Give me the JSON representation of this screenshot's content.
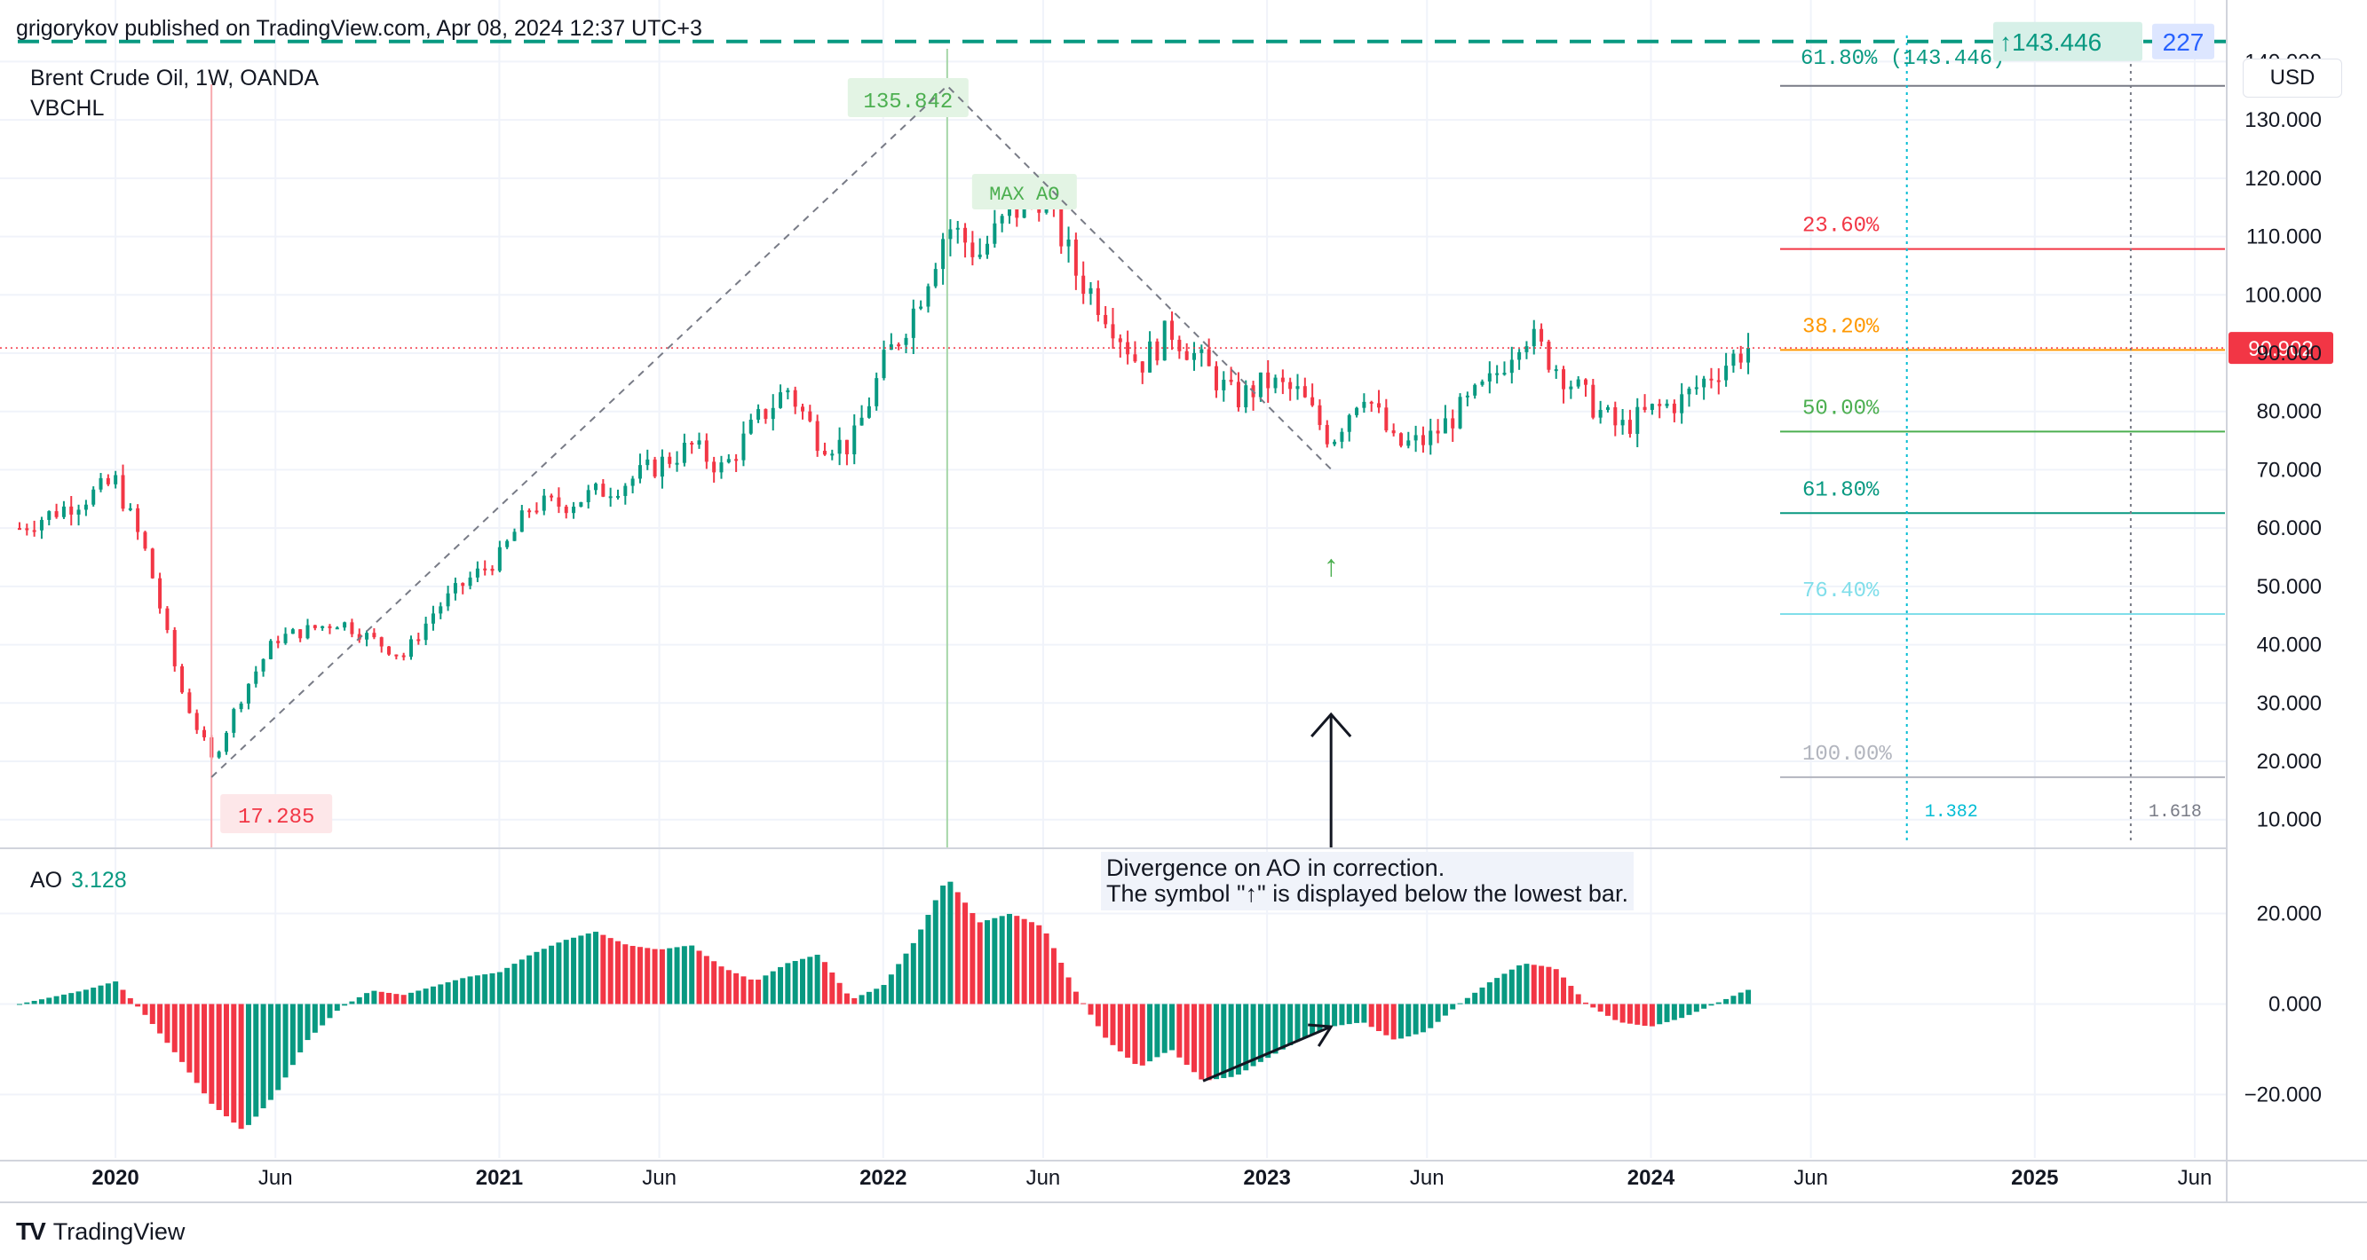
{
  "header": {
    "published": "grigorykov published on TradingView.com, Apr 08, 2024 12:37 UTC+3",
    "symbol": "Brent Crude Oil, 1W, OANDA",
    "indicator": "VBCHL",
    "currency": "USD"
  },
  "ao_panel": {
    "label": "AO",
    "value": "3.128"
  },
  "annotation": {
    "line1": "Divergence on AO in correction.",
    "line2": "The symbol \"↑\" is displayed below the lowest bar."
  },
  "footer": {
    "brand": "TradingView",
    "logo_icon": "tradingview-logo-icon"
  },
  "colors": {
    "up": "#089981",
    "down": "#f23645",
    "grid": "#f0f3fa"
  },
  "chart_data": [
    {
      "type": "candlestick",
      "title": "Brent Crude Oil, 1W, OANDA",
      "x_ticks": [
        "2020",
        "Jun",
        "2021",
        "Jun",
        "2022",
        "Jun",
        "2023",
        "Jun",
        "2024",
        "Jun",
        "2025",
        "Jun"
      ],
      "y_ticks": [
        "10.000",
        "20.000",
        "30.000",
        "40.000",
        "50.000",
        "60.000",
        "70.000",
        "80.000",
        "90.000",
        "100.000",
        "110.000",
        "120.000",
        "130.000",
        "140.000"
      ],
      "ylim": [
        6,
        146
      ],
      "x_start": "2019-10",
      "x_end": "2025-07",
      "last_bar": "2024-04",
      "close_series": [
        [
          "2019-10",
          60
        ],
        [
          "2019-12",
          65
        ],
        [
          "2020-01",
          68
        ],
        [
          "2020-02",
          55
        ],
        [
          "2020-03",
          33
        ],
        [
          "2020-04",
          20
        ],
        [
          "2020-05",
          32
        ],
        [
          "2020-06",
          41
        ],
        [
          "2020-08",
          44
        ],
        [
          "2020-09",
          41
        ],
        [
          "2020-10",
          38
        ],
        [
          "2020-11",
          46
        ],
        [
          "2020-12",
          51
        ],
        [
          "2021-01",
          55
        ],
        [
          "2021-02",
          64
        ],
        [
          "2021-03",
          64
        ],
        [
          "2021-05",
          68
        ],
        [
          "2021-07",
          74
        ],
        [
          "2021-08",
          70
        ],
        [
          "2021-09",
          78
        ],
        [
          "2021-10",
          84
        ],
        [
          "2021-11",
          75
        ],
        [
          "2021-12",
          74
        ],
        [
          "2022-01",
          88
        ],
        [
          "2022-02",
          98
        ],
        [
          "2022-03",
          112
        ],
        [
          "2022-04",
          107
        ],
        [
          "2022-05",
          114
        ],
        [
          "2022-06",
          118
        ],
        [
          "2022-07",
          104
        ],
        [
          "2022-08",
          97
        ],
        [
          "2022-09",
          88
        ],
        [
          "2022-10",
          94
        ],
        [
          "2022-11",
          88
        ],
        [
          "2022-12",
          82
        ],
        [
          "2023-01",
          85
        ],
        [
          "2023-02",
          83
        ],
        [
          "2023-03",
          75
        ],
        [
          "2023-04",
          84
        ],
        [
          "2023-05",
          74
        ],
        [
          "2023-06",
          75
        ],
        [
          "2023-07",
          80
        ],
        [
          "2023-08",
          85
        ],
        [
          "2023-09",
          94
        ],
        [
          "2023-10",
          88
        ],
        [
          "2023-11",
          82
        ],
        [
          "2023-12",
          77
        ],
        [
          "2024-01",
          80
        ],
        [
          "2024-02",
          82
        ],
        [
          "2024-03",
          87
        ],
        [
          "2024-04",
          90.9
        ]
      ],
      "last_price": "90.902",
      "swing_low": {
        "date": "2020-04",
        "label": "17.285"
      },
      "swing_high": {
        "date": "2022-03",
        "label": "135.842"
      },
      "max_ao_label": "MAX AO",
      "correction_low": {
        "date": "2023-03",
        "value": 70.1,
        "marker": "↑"
      },
      "fib_levels": [
        {
          "label": "23.60%",
          "value": 107.87,
          "color": "#f23645"
        },
        {
          "label": "38.20%",
          "value": 90.55,
          "color": "#ff9800"
        },
        {
          "label": "50.00%",
          "value": 76.56,
          "color": "#4caf50"
        },
        {
          "label": "61.80%",
          "value": 62.57,
          "color": "#089981"
        },
        {
          "label": "76.40%",
          "value": 45.26,
          "color": "#80deea"
        },
        {
          "label": "100.00%",
          "value": 17.285,
          "color": "#b2b5be"
        }
      ],
      "target": {
        "label": "61.80% (143.446)",
        "value": 143.446,
        "badge": "↑143.446",
        "count": "227"
      },
      "time_fibs": [
        {
          "label": "1.382",
          "date": "2024-09"
        },
        {
          "label": "1.618",
          "date": "2025-04"
        }
      ]
    },
    {
      "type": "bar",
      "title": "AO",
      "y_ticks": [
        "20.000",
        "0.000",
        "−20.000"
      ],
      "ylim": [
        -34,
        34
      ],
      "ao_series": [
        [
          "2019-10",
          0
        ],
        [
          "2019-12",
          3
        ],
        [
          "2020-01",
          5
        ],
        [
          "2020-02",
          -3
        ],
        [
          "2020-03",
          -12
        ],
        [
          "2020-04",
          -22
        ],
        [
          "2020-05",
          -28
        ],
        [
          "2020-06",
          -20
        ],
        [
          "2020-07",
          -8
        ],
        [
          "2020-08",
          -1
        ],
        [
          "2020-09",
          3
        ],
        [
          "2020-10",
          2
        ],
        [
          "2020-11",
          4
        ],
        [
          "2020-12",
          6
        ],
        [
          "2021-01",
          7
        ],
        [
          "2021-02",
          11
        ],
        [
          "2021-03",
          14
        ],
        [
          "2021-04",
          16
        ],
        [
          "2021-05",
          13
        ],
        [
          "2021-06",
          12
        ],
        [
          "2021-07",
          13
        ],
        [
          "2021-08",
          8
        ],
        [
          "2021-09",
          5
        ],
        [
          "2021-10",
          9
        ],
        [
          "2021-11",
          11
        ],
        [
          "2021-12",
          1
        ],
        [
          "2022-01",
          4
        ],
        [
          "2022-02",
          14
        ],
        [
          "2022-03",
          28
        ],
        [
          "2022-04",
          18
        ],
        [
          "2022-05",
          20
        ],
        [
          "2022-06",
          17
        ],
        [
          "2022-07",
          3
        ],
        [
          "2022-08",
          -8
        ],
        [
          "2022-09",
          -14
        ],
        [
          "2022-10",
          -10
        ],
        [
          "2022-11",
          -17
        ],
        [
          "2022-12",
          -16
        ],
        [
          "2023-01",
          -12
        ],
        [
          "2023-02",
          -8
        ],
        [
          "2023-03",
          -5
        ],
        [
          "2023-04",
          -4
        ],
        [
          "2023-05",
          -8
        ],
        [
          "2023-06",
          -6
        ],
        [
          "2023-07",
          0
        ],
        [
          "2023-08",
          5
        ],
        [
          "2023-09",
          9
        ],
        [
          "2023-10",
          8
        ],
        [
          "2023-11",
          0
        ],
        [
          "2023-12",
          -4
        ],
        [
          "2024-01",
          -5
        ],
        [
          "2024-02",
          -3
        ],
        [
          "2024-03",
          0
        ],
        [
          "2024-04",
          3.128
        ]
      ]
    }
  ]
}
